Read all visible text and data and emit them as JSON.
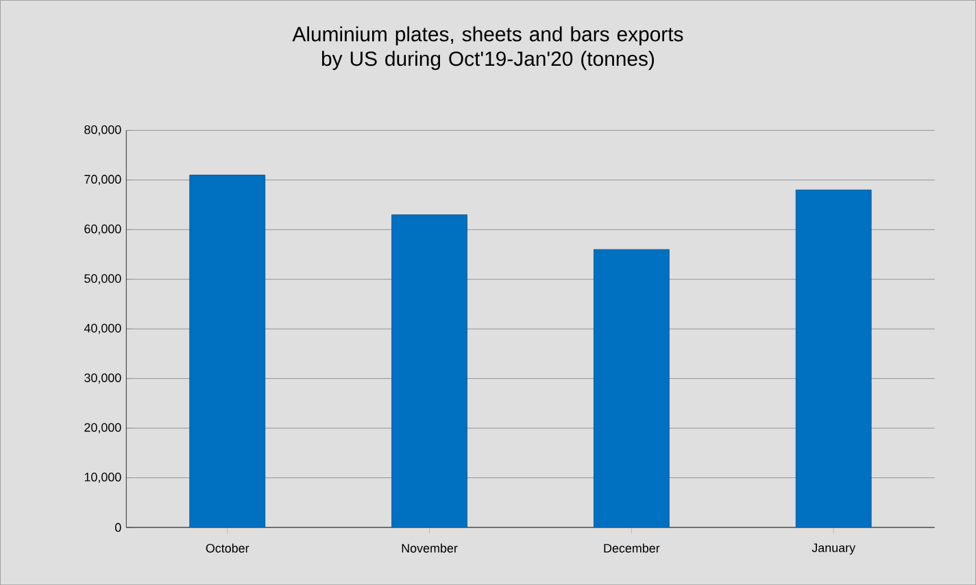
{
  "chart_data": {
    "type": "bar",
    "title": "Aluminium plates, sheets and bars exports by US during Oct'19-Jan'20 (tonnes)",
    "categories": [
      "October",
      "November",
      "December",
      "January"
    ],
    "values": [
      71000,
      63000,
      56000,
      68000
    ],
    "color": "#0070c0",
    "ylim": [
      0,
      80000
    ],
    "yticks": [
      {
        "value": 0,
        "label": "0"
      },
      {
        "value": 10000,
        "label": "10,000"
      },
      {
        "value": 20000,
        "label": "20,000"
      },
      {
        "value": 30000,
        "label": "30,000"
      },
      {
        "value": 40000,
        "label": "40,000"
      },
      {
        "value": 50000,
        "label": "50,000"
      },
      {
        "value": 60000,
        "label": "60,000"
      },
      {
        "value": 70000,
        "label": "70,000"
      },
      {
        "value": 80000,
        "label": "80,000"
      }
    ],
    "grid": "y"
  }
}
